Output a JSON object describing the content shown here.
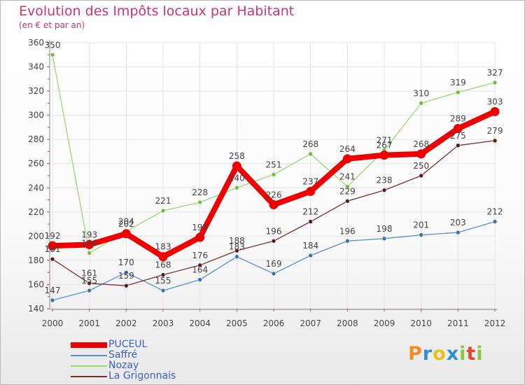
{
  "title": "Evolution des Impôts locaux par Habitant",
  "subtitle": "(en € et par an)",
  "logo": {
    "text": "Proxiti",
    "letters": [
      {
        "ch": "P",
        "color": "#f28c28"
      },
      {
        "ch": "r",
        "color": "#2e8fd6"
      },
      {
        "ch": "o",
        "color": "#e8c21a"
      },
      {
        "ch": "x",
        "color": "#2e8fd6"
      },
      {
        "ch": "i",
        "color": "#8cc63f"
      },
      {
        "ch": "t",
        "color": "#e8452f"
      },
      {
        "ch": "i",
        "color": "#8cc63f"
      }
    ]
  },
  "chart_data": {
    "type": "line",
    "title": "Evolution des Impôts locaux par Habitant",
    "subtitle": "(en € et par an)",
    "xlabel": "",
    "ylabel": "",
    "categories": [
      "2000",
      "2001",
      "2002",
      "2003",
      "2004",
      "2005",
      "2006",
      "2007",
      "2008",
      "2009",
      "2010",
      "2011",
      "2012"
    ],
    "ylim": [
      140,
      360
    ],
    "yticks": [
      140,
      160,
      180,
      200,
      220,
      240,
      260,
      280,
      300,
      320,
      340,
      360
    ],
    "grid": true,
    "legend_position": "bottom-left",
    "series": [
      {
        "name": "Saffré",
        "color": "#5b8ec9",
        "point_color": "#3a73b0",
        "width": 1.3,
        "values": [
          147,
          155,
          170,
          155,
          164,
          183,
          169,
          184,
          196,
          198,
          201,
          203,
          212
        ],
        "labels": [
          "147",
          "155",
          "170",
          "155",
          "164",
          "183",
          "169",
          "184",
          "196",
          "198",
          "201",
          "203",
          "212"
        ]
      },
      {
        "name": "La Grigonnais",
        "color": "#7a2e2e",
        "point_color": "#5a1a1a",
        "width": 1.3,
        "values": [
          181,
          161,
          159,
          168,
          176,
          188,
          196,
          212,
          229,
          238,
          250,
          275,
          279
        ],
        "labels": [
          "181",
          "161",
          "159",
          "168",
          "176",
          "188",
          "196",
          "212",
          "229",
          "238",
          "250",
          "275",
          "279"
        ]
      },
      {
        "name": "Nozay",
        "color": "#9ed870",
        "point_color": "#6fbf3a",
        "width": 1.3,
        "values": [
          350,
          186,
          204,
          221,
          228,
          240,
          251,
          268,
          241,
          271,
          310,
          319,
          327
        ],
        "labels": [
          "350",
          "186",
          "204",
          "221",
          "228",
          "240",
          "251",
          "268",
          "241",
          "271",
          "310",
          "319",
          "327"
        ]
      },
      {
        "name": "PUCEUL",
        "color": "#ee0000",
        "point_color": "#ee0000",
        "width": 8,
        "values": [
          192,
          193,
          202,
          183,
          199,
          258,
          226,
          237,
          264,
          267,
          268,
          289,
          303
        ],
        "labels": [
          "192",
          "193",
          "202",
          "183",
          "199",
          "258",
          "226",
          "237",
          "264",
          "267",
          "268",
          "289",
          "303"
        ]
      }
    ],
    "legend": [
      {
        "name": "PUCEUL",
        "color": "#ee0000",
        "width": 8
      },
      {
        "name": "Saffré",
        "color": "#5b8ec9",
        "width": 2
      },
      {
        "name": "Nozay",
        "color": "#9ed870",
        "width": 2
      },
      {
        "name": "La Grigonnais",
        "color": "#7a2e2e",
        "width": 2
      }
    ]
  }
}
